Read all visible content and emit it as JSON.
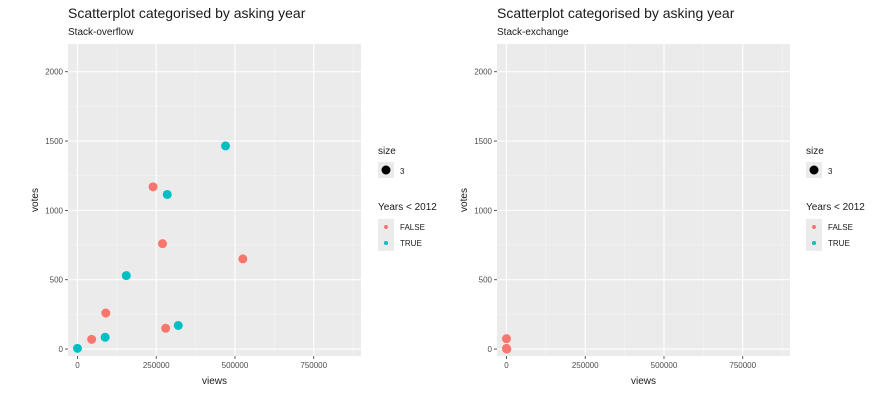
{
  "colors": {
    "FALSE": "#F8766D",
    "TRUE": "#00BFC4",
    "panel": "#EBEBEB",
    "grid": "#FFFFFF",
    "size_key": "#000000"
  },
  "chart_data": [
    {
      "type": "scatter",
      "title": "Scatterplot categorised by asking year",
      "subtitle": "Stack-overflow",
      "xlabel": "views",
      "ylabel": "votes",
      "xlim": [
        -30000,
        900000
      ],
      "ylim": [
        -50,
        2200
      ],
      "x_ticks": [
        0,
        250000,
        500000,
        750000
      ],
      "x_tick_labels": [
        "0",
        "250000",
        "500000",
        "750000"
      ],
      "y_ticks": [
        0,
        500,
        1000,
        1500,
        2000
      ],
      "y_tick_labels": [
        "0",
        "500",
        "1000",
        "1500",
        "2000"
      ],
      "grid": true,
      "legend": {
        "size_title": "size",
        "size_label": "3",
        "color_title": "Years < 2012",
        "entries": [
          "FALSE",
          "TRUE"
        ]
      },
      "series": [
        {
          "name": "FALSE",
          "points": [
            {
              "x": 45000,
              "y": 70
            },
            {
              "x": 90000,
              "y": 260
            },
            {
              "x": 240000,
              "y": 1170
            },
            {
              "x": 270000,
              "y": 760
            },
            {
              "x": 280000,
              "y": 150
            },
            {
              "x": 525000,
              "y": 650
            }
          ]
        },
        {
          "name": "TRUE",
          "points": [
            {
              "x": 0,
              "y": 5
            },
            {
              "x": 88000,
              "y": 85
            },
            {
              "x": 155000,
              "y": 530
            },
            {
              "x": 285000,
              "y": 1115
            },
            {
              "x": 320000,
              "y": 170
            },
            {
              "x": 470000,
              "y": 1465
            }
          ]
        }
      ]
    },
    {
      "type": "scatter",
      "title": "Scatterplot categorised by asking year",
      "subtitle": "Stack-exchange",
      "xlabel": "views",
      "ylabel": "votes",
      "xlim": [
        -30000,
        900000
      ],
      "ylim": [
        -50,
        2200
      ],
      "x_ticks": [
        0,
        250000,
        500000,
        750000
      ],
      "x_tick_labels": [
        "0",
        "250000",
        "500000",
        "750000"
      ],
      "y_ticks": [
        0,
        500,
        1000,
        1500,
        2000
      ],
      "y_tick_labels": [
        "0",
        "500",
        "1000",
        "1500",
        "2000"
      ],
      "grid": true,
      "legend": {
        "size_title": "size",
        "size_label": "3",
        "color_title": "Years < 2012",
        "entries": [
          "FALSE",
          "TRUE"
        ]
      },
      "series": [
        {
          "name": "FALSE",
          "points": [
            {
              "x": 0,
              "y": 75
            },
            {
              "x": 0,
              "y": 5
            },
            {
              "x": 1000,
              "y": 0
            }
          ]
        },
        {
          "name": "TRUE",
          "points": []
        }
      ]
    }
  ]
}
